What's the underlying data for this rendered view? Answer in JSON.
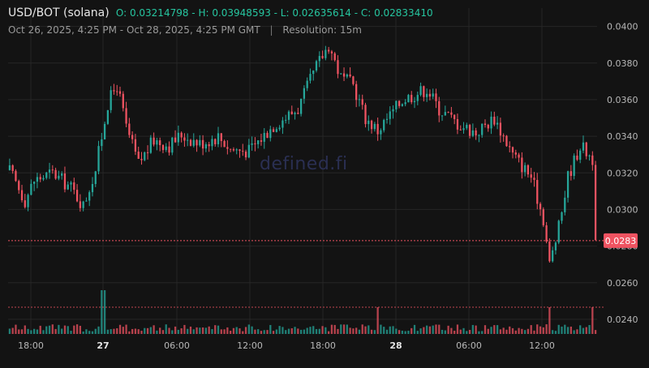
{
  "header": {
    "title": "USD/BOT (solana)",
    "ohlc_text": "O: 0.03214798 - H: 0.03948593 - L: 0.02635614 - C: 0.02833410",
    "date_range": "Oct 26, 2025, 4:25 PM - Oct 28, 2025, 4:25 PM GMT",
    "separator": "|",
    "resolution": "Resolution: 15m"
  },
  "watermark": "defined.fi",
  "colors": {
    "background": "#131313",
    "grid": "#262626",
    "up": "#26a69a",
    "down": "#ef5361",
    "axis_text": "#b8b8b8",
    "price_tag": "#ef5361"
  },
  "chart_data": {
    "type": "candlestick",
    "y_axis": {
      "ylim": [
        0.0232,
        0.041
      ],
      "ticks": [
        "0.0400",
        "0.0380",
        "0.0360",
        "0.0340",
        "0.0320",
        "0.0300",
        "0.0280",
        "0.0260",
        "0.0240"
      ],
      "position": "right"
    },
    "x_axis": {
      "ticks": [
        {
          "label": "18:00",
          "bold": false
        },
        {
          "label": "27",
          "bold": true
        },
        {
          "label": "06:00",
          "bold": false
        },
        {
          "label": "12:00",
          "bold": false
        },
        {
          "label": "18:00",
          "bold": false
        },
        {
          "label": "28",
          "bold": true
        },
        {
          "label": "06:00",
          "bold": false
        },
        {
          "label": "12:00",
          "bold": false
        }
      ]
    },
    "grid": true,
    "last_price": "0.0283",
    "open": 0.03214798,
    "high": 0.03948593,
    "low": 0.02635614,
    "close": 0.0283341,
    "bar_interval": "15m",
    "bar_count": 192,
    "path_anchors": [
      [
        0,
        0.0321
      ],
      [
        5,
        0.0305
      ],
      [
        8,
        0.0316
      ],
      [
        14,
        0.032
      ],
      [
        20,
        0.0312
      ],
      [
        24,
        0.0302
      ],
      [
        28,
        0.0322
      ],
      [
        32,
        0.0358
      ],
      [
        35,
        0.0368
      ],
      [
        38,
        0.0345
      ],
      [
        42,
        0.0325
      ],
      [
        47,
        0.0338
      ],
      [
        52,
        0.0335
      ],
      [
        56,
        0.0341
      ],
      [
        62,
        0.0336
      ],
      [
        68,
        0.034
      ],
      [
        72,
        0.0333
      ],
      [
        78,
        0.0332
      ],
      [
        86,
        0.0346
      ],
      [
        94,
        0.0355
      ],
      [
        100,
        0.0378
      ],
      [
        104,
        0.039
      ],
      [
        108,
        0.0372
      ],
      [
        112,
        0.0368
      ],
      [
        116,
        0.035
      ],
      [
        120,
        0.0343
      ],
      [
        128,
        0.036
      ],
      [
        136,
        0.0366
      ],
      [
        140,
        0.0355
      ],
      [
        146,
        0.0347
      ],
      [
        152,
        0.0342
      ],
      [
        158,
        0.035
      ],
      [
        164,
        0.033
      ],
      [
        170,
        0.0318
      ],
      [
        174,
        0.0295
      ],
      [
        176,
        0.027
      ],
      [
        179,
        0.029
      ],
      [
        182,
        0.0318
      ],
      [
        186,
        0.0335
      ],
      [
        190,
        0.0328
      ],
      [
        191,
        0.0283
      ]
    ]
  }
}
